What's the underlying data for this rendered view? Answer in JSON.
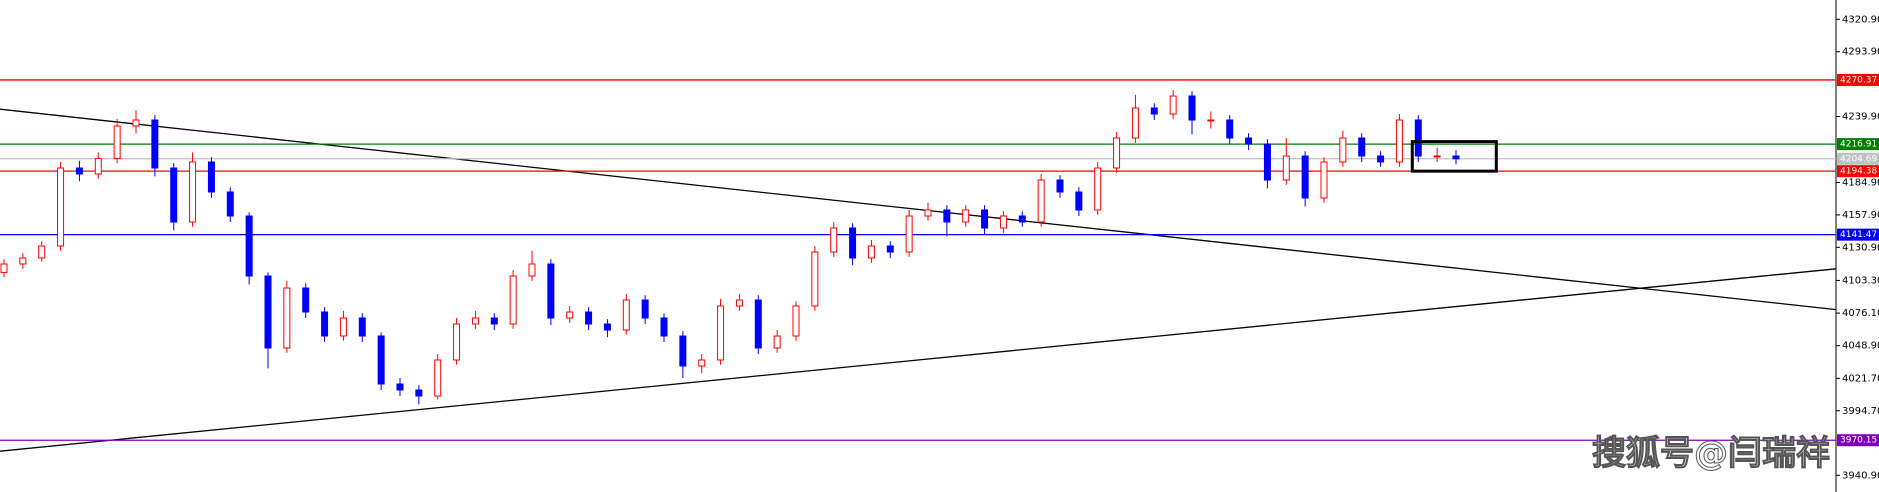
{
  "chart_data": {
    "type": "candlestick",
    "watermark": "搜狐号@闫瑞祥",
    "ylim": [
      3927,
      4337
    ],
    "yticks": [
      {
        "value": 4320.9,
        "label": "4320.90"
      },
      {
        "value": 4293.9,
        "label": "4293.90"
      },
      {
        "value": 4239.9,
        "label": "4239.90"
      },
      {
        "value": 4184.9,
        "label": "4184.90"
      },
      {
        "value": 4157.9,
        "label": "4157.90"
      },
      {
        "value": 4130.9,
        "label": "4130.90"
      },
      {
        "value": 4103.3,
        "label": "4103.30"
      },
      {
        "value": 4076.1,
        "label": "4076.10"
      },
      {
        "value": 4048.9,
        "label": "4048.90"
      },
      {
        "value": 4021.7,
        "label": "4021.70"
      },
      {
        "value": 3994.7,
        "label": "3994.70"
      },
      {
        "value": 3940.9,
        "label": "3940.90"
      }
    ],
    "up_color": "#ff0000",
    "down_color": "#0000ff",
    "levels": [
      {
        "value": 4270.37,
        "color": "#ff0000"
      },
      {
        "value": 4216.91,
        "color": "#008000"
      },
      {
        "value": 4204.69,
        "color": "#c0c0c0"
      },
      {
        "value": 4194.38,
        "color": "#ff0000"
      },
      {
        "value": 4141.47,
        "color": "#0000ff"
      },
      {
        "value": 3970.15,
        "color": "#8000c0"
      }
    ],
    "trendlines": [
      {
        "from": 4246,
        "to": 4079,
        "color": "#000000"
      },
      {
        "from": 3961,
        "to": 4113,
        "color": "#000000"
      }
    ],
    "box": [
      4194.38,
      4219
    ],
    "candles": [
      [
        4110,
        4121,
        4106,
        4117
      ],
      [
        4117,
        4126,
        4113,
        4122
      ],
      [
        4122,
        4136,
        4119,
        4132
      ],
      [
        4132,
        4202,
        4128,
        4197
      ],
      [
        4197,
        4203,
        4186,
        4192
      ],
      [
        4192,
        4210,
        4188,
        4205
      ],
      [
        4205,
        4238,
        4201,
        4232
      ],
      [
        4232,
        4245,
        4226,
        4237
      ],
      [
        4237,
        4241,
        4190,
        4197
      ],
      [
        4197,
        4201,
        4145,
        4152
      ],
      [
        4152,
        4210,
        4148,
        4202
      ],
      [
        4202,
        4206,
        4172,
        4177
      ],
      [
        4177,
        4181,
        4152,
        4157
      ],
      [
        4157,
        4160,
        4100,
        4107
      ],
      [
        4107,
        4110,
        4030,
        4047
      ],
      [
        4047,
        4103,
        4043,
        4097
      ],
      [
        4097,
        4101,
        4072,
        4077
      ],
      [
        4077,
        4081,
        4052,
        4057
      ],
      [
        4057,
        4078,
        4053,
        4072
      ],
      [
        4072,
        4076,
        4052,
        4057
      ],
      [
        4057,
        4060,
        4012,
        4017
      ],
      [
        4017,
        4022,
        4007,
        4012
      ],
      [
        4012,
        4016,
        4000,
        4007
      ],
      [
        4007,
        4042,
        4004,
        4037
      ],
      [
        4037,
        4072,
        4033,
        4067
      ],
      [
        4067,
        4078,
        4063,
        4072
      ],
      [
        4072,
        4076,
        4062,
        4067
      ],
      [
        4067,
        4112,
        4063,
        4107
      ],
      [
        4107,
        4128,
        4103,
        4117
      ],
      [
        4117,
        4121,
        4066,
        4072
      ],
      [
        4072,
        4082,
        4068,
        4077
      ],
      [
        4077,
        4081,
        4062,
        4067
      ],
      [
        4067,
        4071,
        4056,
        4062
      ],
      [
        4062,
        4092,
        4058,
        4087
      ],
      [
        4087,
        4091,
        4067,
        4072
      ],
      [
        4072,
        4076,
        4052,
        4057
      ],
      [
        4057,
        4061,
        4022,
        4032
      ],
      [
        4032,
        4042,
        4026,
        4037
      ],
      [
        4037,
        4088,
        4033,
        4082
      ],
      [
        4082,
        4092,
        4078,
        4087
      ],
      [
        4087,
        4091,
        4042,
        4047
      ],
      [
        4047,
        4062,
        4043,
        4057
      ],
      [
        4057,
        4086,
        4053,
        4082
      ],
      [
        4082,
        4132,
        4078,
        4127
      ],
      [
        4127,
        4152,
        4123,
        4147
      ],
      [
        4147,
        4151,
        4116,
        4122
      ],
      [
        4122,
        4137,
        4118,
        4132
      ],
      [
        4132,
        4136,
        4122,
        4127
      ],
      [
        4127,
        4162,
        4123,
        4157
      ],
      [
        4157,
        4168,
        4153,
        4162
      ],
      [
        4162,
        4166,
        4140,
        4152
      ],
      [
        4152,
        4166,
        4148,
        4162
      ],
      [
        4162,
        4166,
        4142,
        4147
      ],
      [
        4147,
        4161,
        4143,
        4157
      ],
      [
        4157,
        4161,
        4148,
        4152
      ],
      [
        4152,
        4192,
        4148,
        4187
      ],
      [
        4187,
        4191,
        4172,
        4177
      ],
      [
        4177,
        4181,
        4157,
        4162
      ],
      [
        4162,
        4202,
        4158,
        4197
      ],
      [
        4197,
        4227,
        4193,
        4222
      ],
      [
        4222,
        4258,
        4218,
        4247
      ],
      [
        4247,
        4251,
        4237,
        4242
      ],
      [
        4242,
        4262,
        4238,
        4257
      ],
      [
        4257,
        4261,
        4225,
        4237
      ],
      [
        4237,
        4244,
        4230,
        4237
      ],
      [
        4237,
        4241,
        4217,
        4222
      ],
      [
        4222,
        4226,
        4212,
        4217
      ],
      [
        4217,
        4221,
        4180,
        4187
      ],
      [
        4187,
        4222,
        4183,
        4207
      ],
      [
        4207,
        4211,
        4165,
        4172
      ],
      [
        4172,
        4206,
        4168,
        4202
      ],
      [
        4202,
        4228,
        4198,
        4222
      ],
      [
        4222,
        4226,
        4202,
        4207
      ],
      [
        4207,
        4211,
        4198,
        4202
      ],
      [
        4202,
        4242,
        4198,
        4237
      ],
      [
        4237,
        4241,
        4202,
        4207
      ],
      [
        4207,
        4214,
        4202,
        4207
      ],
      [
        4207,
        4212,
        4200,
        4204.69
      ]
    ]
  }
}
